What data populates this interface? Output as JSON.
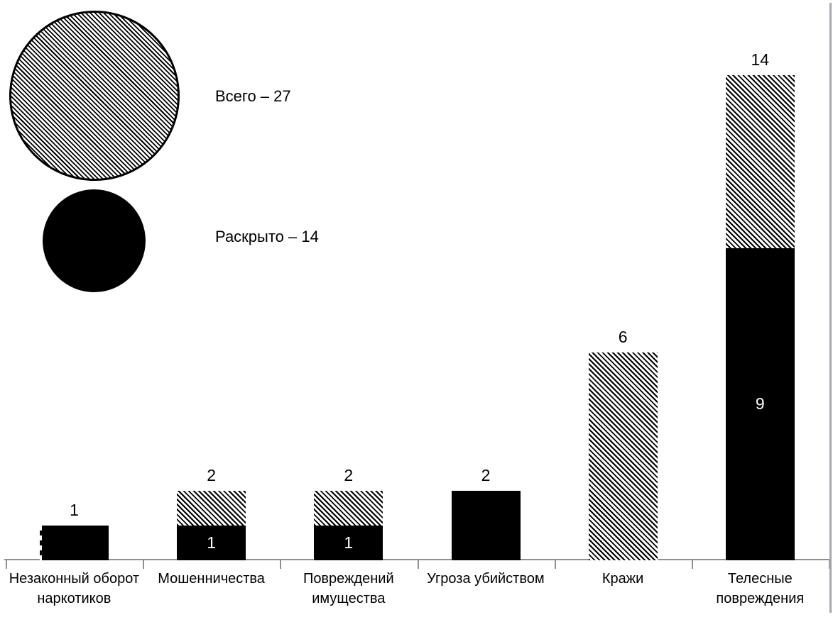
{
  "page": {
    "background": "#ffffff",
    "right_border_color": "#a2a8ae"
  },
  "legend": {
    "total": {
      "label": "Всего – 27",
      "swatch": "hatched-circle"
    },
    "solved": {
      "label": "Раскрыто – 14",
      "swatch": "solid-black-circle"
    }
  },
  "chart_data": {
    "type": "bar",
    "subtype": "overlapped-total-vs-solved",
    "title": "",
    "categories": [
      "Незаконный оборот наркотиков",
      "Мошенничества",
      "Повреждений имущества",
      "Угроза убийством",
      "Кражи",
      "Телесные повреждения"
    ],
    "series": [
      {
        "name": "Всего",
        "pattern": "diagonal-hatch",
        "values": [
          1,
          2,
          2,
          2,
          6,
          14
        ]
      },
      {
        "name": "Раскрыто",
        "pattern": "solid-black",
        "values": [
          1,
          1,
          1,
          2,
          0,
          9
        ]
      }
    ],
    "bar_total_labels": [
      "1",
      "2",
      "2",
      "2",
      "6",
      "14"
    ],
    "bar_solved_labels": [
      "",
      "1",
      "1",
      "",
      "",
      "9"
    ],
    "legend_entries": [
      "Всего – 27",
      "Раскрыто – 14"
    ],
    "legend_position": "top-left",
    "ylim": [
      0,
      14.1
    ],
    "gridlines": false,
    "axis_color": "#8f8f8f",
    "bar_color": "#000000",
    "label_color": "#000000",
    "inner_label_color": "#ffffff"
  }
}
